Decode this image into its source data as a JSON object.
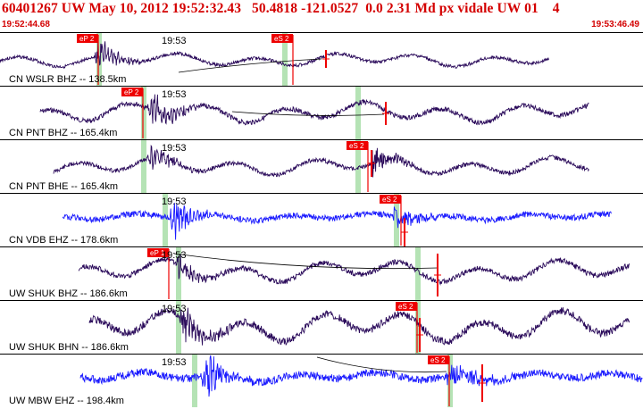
{
  "header": {
    "title": "60401267 UW May 10, 2012 19:52:32.43   50.4818 -121.0527  0.0 2.31 Md px vidale UW 01    4",
    "time_start": "19:52:44.68",
    "time_end": "19:53:46.49"
  },
  "colors": {
    "header_text": "#d40000",
    "pick": "#ee0000",
    "pick_window": "#b5e3b5",
    "waveform_dark": "#2a0a5a",
    "waveform_blue": "#1a1aff",
    "divider": "#000000"
  },
  "traces": [
    {
      "label": "CN WSLR BHZ -- 138.5km",
      "time_label": "19:53",
      "color": "dark",
      "picks": [
        {
          "label": "eP 2"
        },
        {
          "label": "eS 2"
        }
      ]
    },
    {
      "label": "CN PNT BHZ -- 165.4km",
      "time_label": "19:53",
      "color": "dark",
      "picks": [
        {
          "label": "eP 2"
        }
      ]
    },
    {
      "label": "CN PNT BHE -- 165.4km",
      "time_label": "19:53",
      "color": "dark",
      "picks": [
        {
          "label": "eS 2"
        }
      ]
    },
    {
      "label": "CN VDB EHZ -- 178.6km",
      "time_label": "19:53",
      "color": "blue",
      "picks": [
        {
          "label": "eS 2"
        }
      ]
    },
    {
      "label": "UW SHUK BHZ -- 186.6km",
      "time_label": "19:53",
      "color": "dark",
      "picks": [
        {
          "label": "eP 1"
        }
      ]
    },
    {
      "label": "UW SHUK BHN -- 186.6km",
      "time_label": "19:53",
      "color": "dark",
      "picks": [
        {
          "label": "eS 2"
        }
      ]
    },
    {
      "label": "UW MBW EHZ -- 198.4km",
      "time_label": "19:53",
      "color": "blue",
      "picks": [
        {
          "label": "eS 2"
        }
      ]
    }
  ]
}
